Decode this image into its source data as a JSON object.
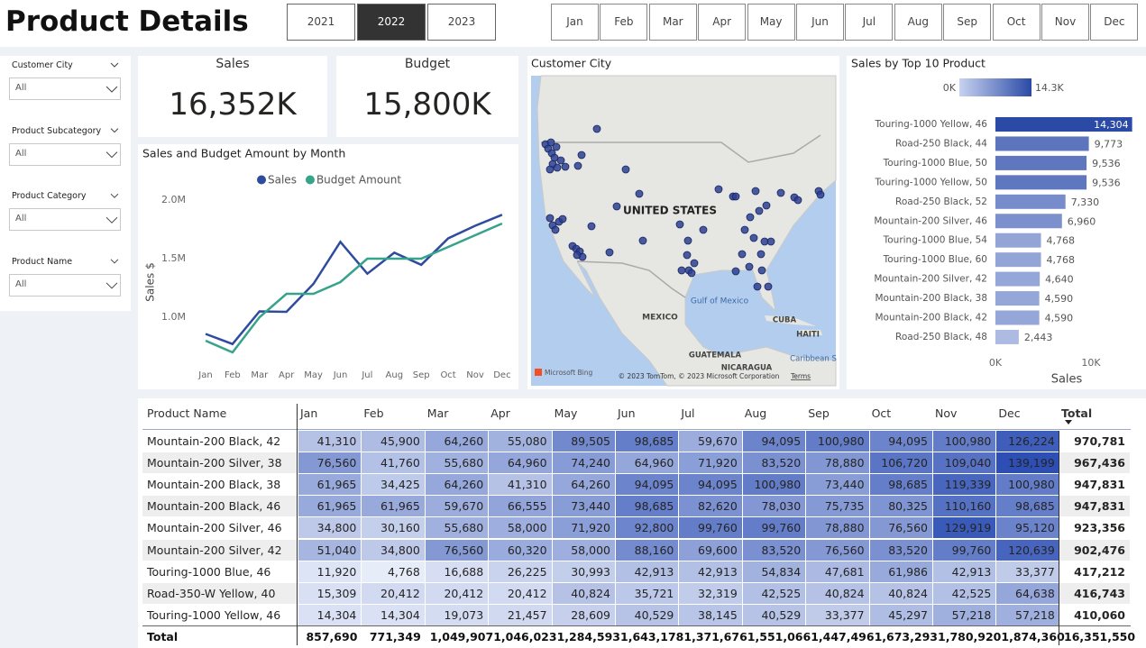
{
  "header": {
    "title": "Product Details",
    "years": [
      "2021",
      "2022",
      "2023"
    ],
    "selected_year": "2022",
    "months": [
      "Jan",
      "Feb",
      "Mar",
      "Apr",
      "May",
      "Jun",
      "Jul",
      "Aug",
      "Sep",
      "Oct",
      "Nov",
      "Dec"
    ]
  },
  "filters": [
    {
      "label": "Customer City",
      "value": "All"
    },
    {
      "label": "Product Subcategory",
      "value": "All"
    },
    {
      "label": "Product Category",
      "value": "All"
    },
    {
      "label": "Product Name",
      "value": "All"
    }
  ],
  "cards": [
    {
      "title": "Sales",
      "value": "16,352K"
    },
    {
      "title": "Budget",
      "value": "15,800K"
    }
  ],
  "chart_data": [
    {
      "type": "line",
      "title": "Sales and Budget Amount by Month",
      "y_label": "Sales $",
      "categories": [
        "Jan",
        "Feb",
        "Mar",
        "Apr",
        "May",
        "Jun",
        "Jul",
        "Aug",
        "Sep",
        "Oct",
        "Nov",
        "Dec"
      ],
      "series": [
        {
          "name": "Sales",
          "color": "#2f4b9e",
          "values": [
            857690,
            771349,
            1049907,
            1046023,
            1284593,
            1643178,
            1371676,
            1551066,
            1447496,
            1673293,
            1780920,
            1874360
          ]
        },
        {
          "name": "Budget Amount",
          "color": "#36a38a",
          "values": [
            800000,
            700000,
            1000000,
            1200000,
            1200000,
            1300000,
            1500000,
            1500000,
            1500000,
            1600000,
            1700000,
            1800000
          ]
        }
      ],
      "ylim": [
        650000,
        2100000
      ],
      "yticks": [
        {
          "value": 1000000,
          "label": "1.0M"
        },
        {
          "value": 1500000,
          "label": "1.5M"
        },
        {
          "value": 2000000,
          "label": "2.0M"
        }
      ],
      "legend": "top"
    },
    {
      "type": "bar",
      "orientation": "horizontal",
      "title": "Sales by Top 10 Product",
      "x_label": "Sales",
      "categories": [
        "Touring-1000 Yellow, 46",
        "Road-250 Black, 44",
        "Touring-1000 Blue, 50",
        "Touring-1000 Yellow, 50",
        "Road-250 Black, 52",
        "Mountain-200 Silver, 46",
        "Touring-1000 Blue, 54",
        "Touring-1000 Blue, 60",
        "Mountain-200 Silver, 42",
        "Mountain-200 Black, 38",
        "Mountain-200 Black, 42",
        "Road-250 Black, 48"
      ],
      "values": [
        14304,
        9773,
        9536,
        9536,
        7330,
        6960,
        4768,
        4768,
        4640,
        4590,
        4590,
        2443
      ],
      "value_labels": [
        "14,304",
        "9,773",
        "9,536",
        "9,536",
        "7,330",
        "6,960",
        "4,768",
        "4,768",
        "4,640",
        "4,590",
        "4,590",
        "2,443"
      ],
      "xlim": [
        0,
        15000
      ],
      "xticks": [
        {
          "value": 0,
          "label": "0K"
        },
        {
          "value": 10000,
          "label": "10K"
        }
      ],
      "color_scale": {
        "colors": [
          "#c8d2f0",
          "#2a4aa6"
        ],
        "min": {
          "value": 0,
          "label": "0K"
        },
        "max": {
          "value": 14300,
          "label": "14.3K"
        }
      }
    }
  ],
  "map": {
    "title": "Customer City",
    "labels": [
      "UNITED STATES",
      "MEXICO",
      "Gulf of Mexico",
      "CUBA",
      "HAITI",
      "GUATEMALA",
      "NICARAGUA",
      "Caribbean S"
    ],
    "attribution": "© 2023 TomTom, © 2023 Microsoft Corporation",
    "terms": "Terms",
    "logo": "Microsoft Bing"
  },
  "table": {
    "columns": [
      "Product Name",
      "Jan",
      "Feb",
      "Mar",
      "Apr",
      "May",
      "Jun",
      "Jul",
      "Aug",
      "Sep",
      "Oct",
      "Nov",
      "Dec",
      "Total"
    ],
    "rows": [
      [
        "Mountain-200 Black, 42",
        "41,310",
        "45,900",
        "64,260",
        "55,080",
        "89,505",
        "98,685",
        "59,670",
        "94,095",
        "100,980",
        "94,095",
        "100,980",
        "126,224",
        "970,781"
      ],
      [
        "Mountain-200 Silver, 38",
        "76,560",
        "41,760",
        "55,680",
        "64,960",
        "74,240",
        "64,960",
        "71,920",
        "83,520",
        "78,880",
        "106,720",
        "109,040",
        "139,199",
        "967,436"
      ],
      [
        "Mountain-200 Black, 38",
        "61,965",
        "34,425",
        "64,260",
        "41,310",
        "64,260",
        "94,095",
        "94,095",
        "100,980",
        "73,440",
        "98,685",
        "119,339",
        "100,980",
        "947,831"
      ],
      [
        "Mountain-200 Black, 46",
        "61,965",
        "61,965",
        "59,670",
        "66,555",
        "73,440",
        "98,685",
        "82,620",
        "78,030",
        "75,735",
        "80,325",
        "110,160",
        "98,685",
        "947,831"
      ],
      [
        "Mountain-200 Silver, 46",
        "34,800",
        "30,160",
        "55,680",
        "58,000",
        "71,920",
        "92,800",
        "99,760",
        "99,760",
        "78,880",
        "76,560",
        "129,919",
        "95,120",
        "923,356"
      ],
      [
        "Mountain-200 Silver, 42",
        "51,040",
        "34,800",
        "76,560",
        "60,320",
        "58,000",
        "88,160",
        "69,600",
        "83,520",
        "76,560",
        "83,520",
        "99,760",
        "120,639",
        "902,476"
      ],
      [
        "Touring-1000 Blue, 46",
        "11,920",
        "4,768",
        "16,688",
        "26,225",
        "30,993",
        "42,913",
        "42,913",
        "54,834",
        "47,681",
        "61,986",
        "42,913",
        "33,377",
        "417,212"
      ],
      [
        "Road-350-W Yellow, 40",
        "15,309",
        "20,412",
        "20,412",
        "20,412",
        "40,824",
        "35,721",
        "32,319",
        "42,525",
        "40,824",
        "40,824",
        "42,525",
        "64,638",
        "416,743"
      ],
      [
        "Touring-1000 Yellow, 46",
        "14,304",
        "14,304",
        "19,073",
        "21,457",
        "28,609",
        "40,529",
        "38,145",
        "40,529",
        "33,377",
        "45,297",
        "57,218",
        "57,218",
        "410,060"
      ]
    ],
    "total_row": [
      "Total",
      "857,690",
      "771,349",
      "1,049,907",
      "1,046,023",
      "1,284,593",
      "1,643,178",
      "1,371,676",
      "1,551,066",
      "1,447,496",
      "1,673,293",
      "1,780,920",
      "1,874,360",
      "16,351,550"
    ]
  }
}
